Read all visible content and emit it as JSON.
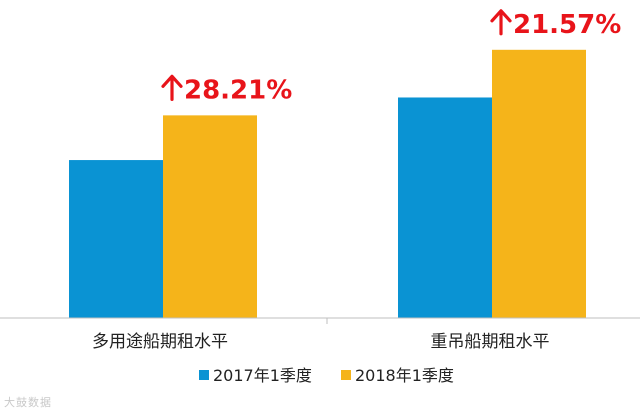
{
  "chart_data": {
    "type": "bar",
    "categories": [
      "多用途船期租水平",
      "重吊船期租水平"
    ],
    "series": [
      {
        "name": "2017年1季度",
        "values": [
          5300,
          7400
        ],
        "color": "#0a93d3"
      },
      {
        "name": "2018年1季度",
        "values": [
          6800,
          9000
        ],
        "color": "#f5b41a"
      }
    ],
    "annotations": [
      "28.21%",
      "21.57%"
    ],
    "annotation_color": "#e8141a",
    "ylim": [
      0,
      10000
    ],
    "title": "",
    "xlabel": "",
    "ylabel": ""
  },
  "watermark": "大鼓数据"
}
